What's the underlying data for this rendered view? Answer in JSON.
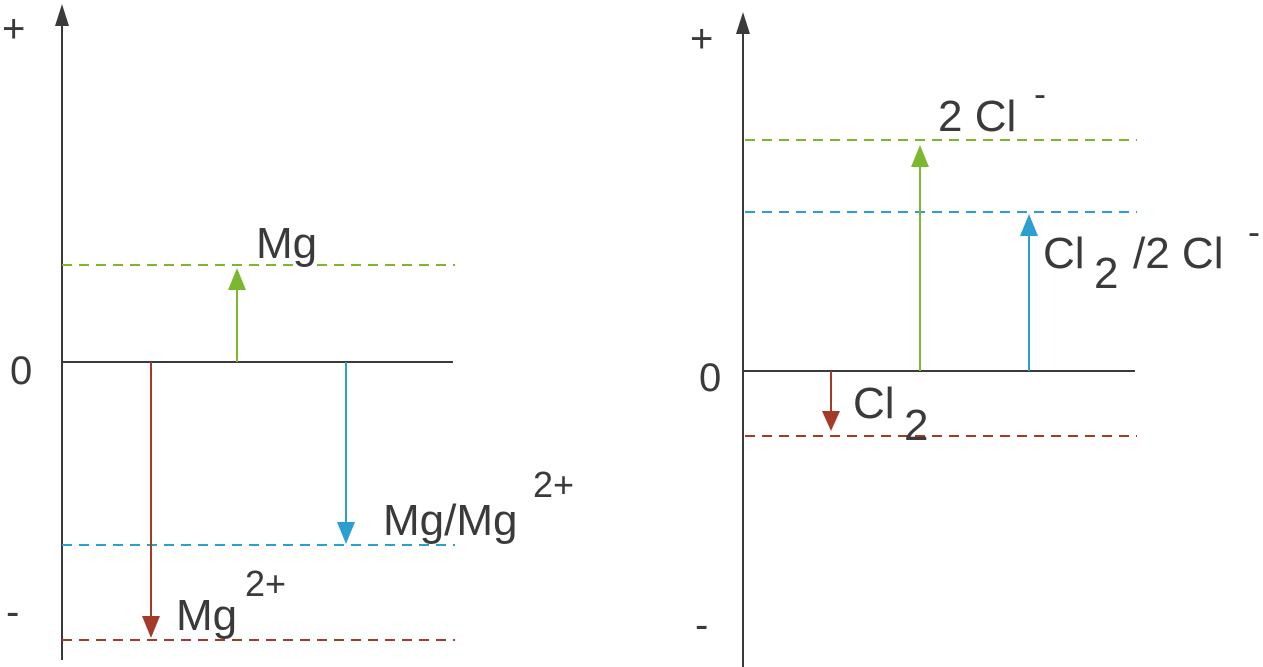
{
  "colors": {
    "axis": "#3a3a3a",
    "green": "#7cb82f",
    "blue": "#2a9fd0",
    "red": "#a33a2a"
  },
  "left_diagram": {
    "plus_label": "+",
    "minus_label": "-",
    "zero_label": "0",
    "mg_label": "Mg",
    "couple_label_main": "Mg/Mg",
    "couple_label_sup": "2+",
    "ion_label_main": "Mg",
    "ion_label_sup": "2+"
  },
  "right_diagram": {
    "plus_label": "+",
    "minus_label": "-",
    "zero_label": "0",
    "chloride_label_main": "2 Cl",
    "chloride_label_sup": "-",
    "couple_label_main": "Cl",
    "couple_label_sub": "2",
    "couple_label_rest": "/2 Cl",
    "couple_label_sup": "-",
    "chlorine_label_main": "Cl",
    "chlorine_label_sub": "2"
  }
}
